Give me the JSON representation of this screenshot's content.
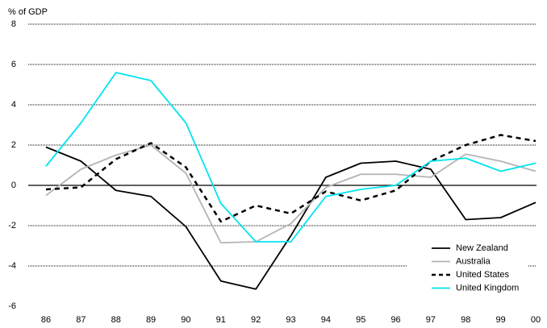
{
  "chart_data": {
    "type": "line",
    "y_label": "% of GDP",
    "categories": [
      "86",
      "87",
      "88",
      "89",
      "90",
      "91",
      "92",
      "93",
      "94",
      "95",
      "96",
      "97",
      "98",
      "99",
      "00"
    ],
    "series": [
      {
        "name": "New Zealand",
        "color": "#000000",
        "dash": "solid",
        "values": [
          1.9,
          1.2,
          -0.25,
          -0.55,
          -2.05,
          -4.75,
          -5.15,
          -2.5,
          0.4,
          1.1,
          1.2,
          0.8,
          -1.7,
          -1.6,
          -0.85
        ]
      },
      {
        "name": "Australia",
        "color": "#b4b4b4",
        "dash": "solid",
        "values": [
          -0.5,
          0.8,
          1.5,
          2.0,
          0.6,
          -2.85,
          -2.8,
          -1.9,
          -0.1,
          0.55,
          0.55,
          0.4,
          1.55,
          1.2,
          0.7
        ]
      },
      {
        "name": "United States",
        "color": "#000000",
        "dash": "dashed",
        "values": [
          -0.2,
          -0.1,
          1.3,
          2.1,
          0.9,
          -1.8,
          -1.0,
          -1.4,
          -0.3,
          -0.75,
          -0.25,
          1.2,
          2.0,
          2.5,
          2.2
        ]
      },
      {
        "name": "United Kingdom",
        "color": "#00e5f0",
        "dash": "solid",
        "values": [
          0.95,
          3.1,
          5.6,
          5.2,
          3.1,
          -0.9,
          -2.8,
          -2.8,
          -0.55,
          -0.2,
          0.0,
          1.2,
          1.35,
          0.7,
          1.1
        ]
      }
    ],
    "ylim": [
      -6,
      8
    ],
    "yticks": [
      -6,
      -4,
      -2,
      0,
      2,
      4,
      6,
      8
    ],
    "grid": true,
    "legend": "lower right"
  }
}
